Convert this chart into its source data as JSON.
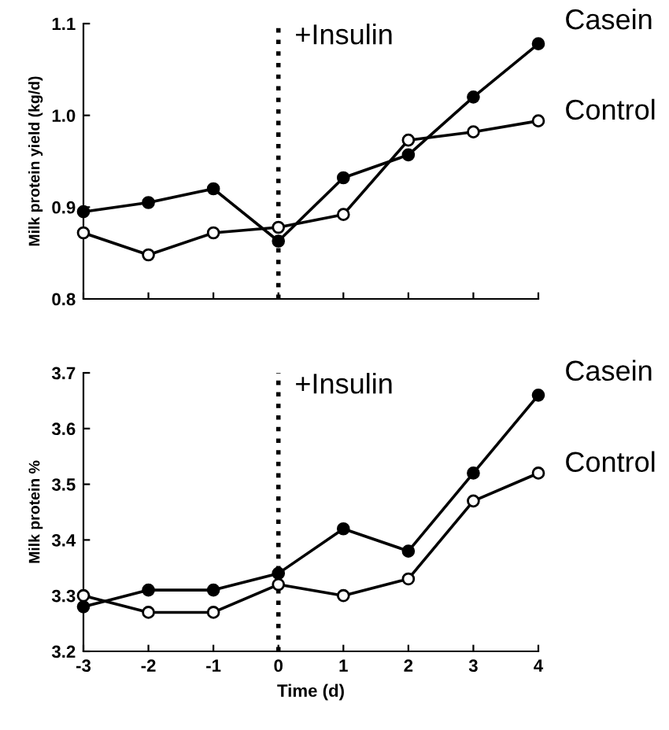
{
  "chart_data": [
    {
      "type": "line",
      "ylabel": "Milk protein yield (kg/d)",
      "x": [
        -3,
        -2,
        -1,
        0,
        1,
        2,
        3,
        4
      ],
      "xlim": [
        -3,
        4
      ],
      "xticks": [
        {
          "value": -3,
          "label": null
        },
        {
          "value": -2,
          "label": null
        },
        {
          "value": -1,
          "label": null
        },
        {
          "value": 0,
          "label": null
        },
        {
          "value": 1,
          "label": null
        },
        {
          "value": 2,
          "label": null
        },
        {
          "value": 3,
          "label": null
        },
        {
          "value": 4,
          "label": null
        }
      ],
      "ylim": [
        0.8,
        1.1
      ],
      "yticks": [
        {
          "value": 0.8,
          "label": "0.8"
        },
        {
          "value": 0.9,
          "label": "0.9"
        },
        {
          "value": 1.0,
          "label": "1.0"
        },
        {
          "value": 1.1,
          "label": "1.1"
        }
      ],
      "tick_labels": "y",
      "marker": "circle",
      "grid": false,
      "legend": "right",
      "series": [
        {
          "name": "Casein",
          "color": "#000000",
          "values": [
            0.895,
            0.905,
            0.92,
            0.863,
            0.932,
            0.957,
            1.02,
            1.078
          ]
        },
        {
          "name": "Control",
          "color": "#ffffff",
          "values": [
            0.872,
            0.848,
            0.872,
            0.878,
            0.892,
            0.973,
            0.982,
            0.994
          ]
        }
      ],
      "ref_lines": [
        {
          "axis": "x",
          "value": 0,
          "label": "+Insulin",
          "line_style": "dotted",
          "color": "#000000"
        }
      ]
    },
    {
      "type": "line",
      "xlabel": "Time (d)",
      "ylabel": "Milk protein %",
      "x": [
        -3,
        -2,
        -1,
        0,
        1,
        2,
        3,
        4
      ],
      "xlim": [
        -3,
        4
      ],
      "xticks": [
        -3,
        -2,
        -1,
        0,
        1,
        2,
        3,
        4
      ],
      "ylim": [
        3.2,
        3.7
      ],
      "yticks": [
        {
          "value": 3.2,
          "label": "3.2"
        },
        {
          "value": 3.3,
          "label": "3.3"
        },
        {
          "value": 3.4,
          "label": "3.4"
        },
        {
          "value": 3.5,
          "label": "3.5"
        },
        {
          "value": 3.6,
          "label": "3.6"
        },
        {
          "value": 3.7,
          "label": "3.7"
        }
      ],
      "marker": "circle",
      "grid": false,
      "legend": "right",
      "series": [
        {
          "name": "Casein",
          "color": "#000000",
          "values": [
            3.28,
            3.31,
            3.31,
            3.34,
            3.42,
            3.38,
            3.52,
            3.66
          ]
        },
        {
          "name": "Control",
          "color": "#ffffff",
          "values": [
            3.3,
            3.27,
            3.27,
            3.32,
            3.3,
            3.33,
            3.47,
            3.52
          ]
        }
      ],
      "ref_lines": [
        {
          "axis": "x",
          "value": 0,
          "label": "+Insulin",
          "line_style": "dotted",
          "color": "#000000"
        }
      ]
    }
  ]
}
